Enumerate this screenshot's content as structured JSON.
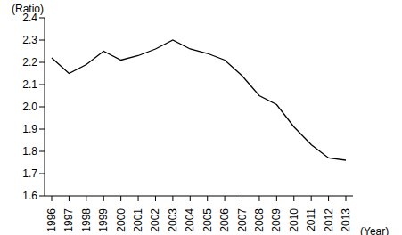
{
  "chart_data": {
    "type": "line",
    "y_label": "(Ratio)",
    "x_label": "(Year)",
    "categories": [
      "1996",
      "1997",
      "1998",
      "1999",
      "2000",
      "2001",
      "2002",
      "2003",
      "2004",
      "2005",
      "2006",
      "2007",
      "2008",
      "2009",
      "2010",
      "2011",
      "2012",
      "2013"
    ],
    "values": [
      2.22,
      2.15,
      2.19,
      2.25,
      2.21,
      2.23,
      2.26,
      2.3,
      2.26,
      2.24,
      2.21,
      2.14,
      2.05,
      2.01,
      1.91,
      1.83,
      1.77,
      1.76
    ],
    "color": "#000000",
    "ylim": [
      1.6,
      2.4
    ],
    "yticks": [
      1.6,
      1.7,
      1.8,
      1.9,
      {
        "value": 2,
        "label": "2.0"
      },
      2.1,
      2.2,
      2.3,
      2.4
    ],
    "grid": false
  }
}
